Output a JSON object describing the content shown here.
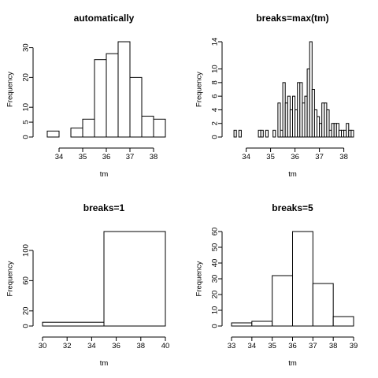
{
  "chart_data": [
    {
      "type": "bar",
      "title": "automatically",
      "xlabel": "tm",
      "ylabel": "Frequency",
      "breaks": [
        33.5,
        34,
        34.5,
        35,
        35.5,
        36,
        36.5,
        37,
        37.5,
        38,
        38.5
      ],
      "values": [
        2,
        0,
        3,
        6,
        26,
        28,
        32,
        20,
        7,
        6
      ],
      "xlim": [
        33.3,
        38.5
      ],
      "ylim": [
        0,
        32
      ],
      "xticks": [
        "34",
        "35",
        "36",
        "37",
        "38"
      ],
      "yticks": [
        "0",
        "5",
        "10",
        "20",
        "30"
      ]
    },
    {
      "type": "bar",
      "title": "breaks=max(tm)",
      "xlabel": "tm",
      "ylabel": "Frequency",
      "breaks": [
        33.5,
        33.6,
        33.7,
        33.8,
        33.9,
        34.0,
        34.1,
        34.2,
        34.3,
        34.4,
        34.5,
        34.6,
        34.7,
        34.8,
        34.9,
        35.0,
        35.1,
        35.2,
        35.3,
        35.4,
        35.5,
        35.6,
        35.7,
        35.8,
        35.9,
        36.0,
        36.1,
        36.2,
        36.3,
        36.4,
        36.5,
        36.6,
        36.7,
        36.8,
        36.9,
        37.0,
        37.1,
        37.2,
        37.3,
        37.4,
        37.5,
        37.6,
        37.7,
        37.8,
        37.9,
        38.0,
        38.1,
        38.2,
        38.3,
        38.4
      ],
      "values": [
        1,
        0,
        1,
        0,
        0,
        0,
        0,
        0,
        0,
        0,
        1,
        1,
        0,
        1,
        0,
        0,
        1,
        0,
        5,
        1,
        8,
        5,
        6,
        4,
        6,
        4,
        8,
        8,
        5,
        6,
        10,
        14,
        7,
        4,
        3,
        2,
        5,
        5,
        4,
        1,
        2,
        2,
        2,
        1,
        1,
        1,
        2,
        1,
        1
      ],
      "xlim": [
        33.4,
        38.4
      ],
      "ylim": [
        0,
        14
      ],
      "xticks": [
        "34",
        "35",
        "36",
        "37",
        "38"
      ],
      "yticks": [
        "0",
        "2",
        "4",
        "6",
        "8",
        "10",
        "14"
      ]
    },
    {
      "type": "bar",
      "title": "breaks=1",
      "xlabel": "tm",
      "ylabel": "Frequency",
      "breaks": [
        30,
        35,
        40
      ],
      "values": [
        5,
        125
      ],
      "xlim": [
        30,
        40
      ],
      "ylim": [
        0,
        125
      ],
      "xticks": [
        "30",
        "32",
        "34",
        "36",
        "38",
        "40"
      ],
      "yticks": [
        "0",
        "20",
        "60",
        "100"
      ]
    },
    {
      "type": "bar",
      "title": "breaks=5",
      "xlabel": "tm",
      "ylabel": "Frequency",
      "breaks": [
        33,
        34,
        35,
        36,
        37,
        38,
        39
      ],
      "values": [
        2,
        3,
        32,
        60,
        27,
        6
      ],
      "xlim": [
        33,
        39
      ],
      "ylim": [
        0,
        60
      ],
      "xticks": [
        "33",
        "34",
        "35",
        "36",
        "37",
        "38",
        "39"
      ],
      "yticks": [
        "0",
        "10",
        "20",
        "30",
        "40",
        "50",
        "60"
      ]
    }
  ]
}
